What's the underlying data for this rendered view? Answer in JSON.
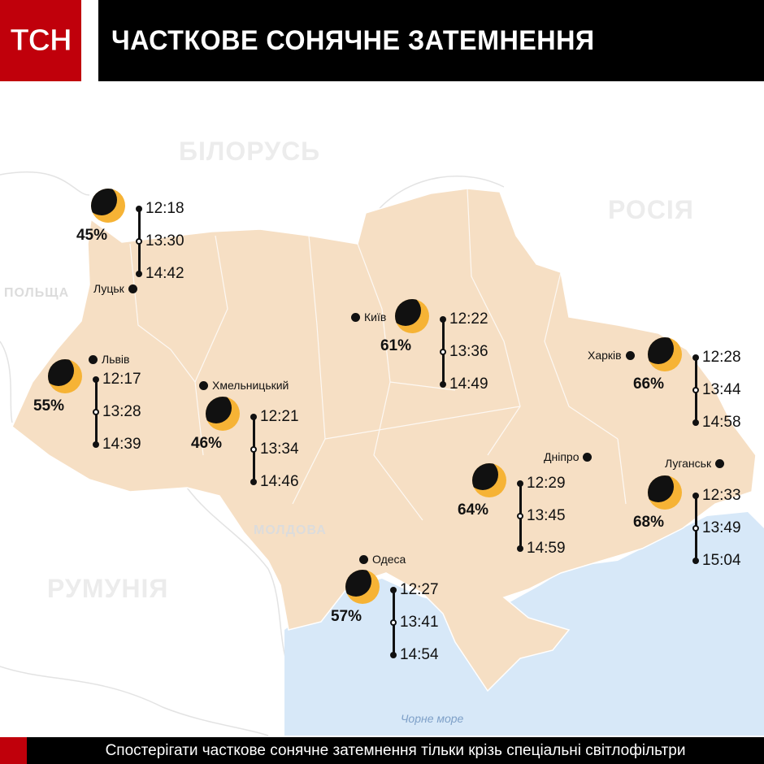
{
  "header": {
    "logo": "ТСН",
    "title": "ЧАСТКОВЕ СОНЯЧНЕ ЗАТЕМНЕННЯ"
  },
  "countries": {
    "belarus": "БІЛОРУСЬ",
    "russia": "РОСІЯ",
    "poland": "ПОЛЬЩА",
    "moldova": "МОЛДОВА",
    "romania": "РУМУНІЯ"
  },
  "sea": "Чорне море",
  "colors": {
    "land": "#f6dfc4",
    "sea": "#d7e8f8",
    "sun": "#f6b335",
    "brand": "#c0000b"
  },
  "regions": [
    {
      "city": "Луцьк",
      "percent": "45%",
      "times": [
        "12:18",
        "13:30",
        "14:42"
      ]
    },
    {
      "city": "Львів",
      "percent": "55%",
      "times": [
        "12:17",
        "13:28",
        "14:39"
      ]
    },
    {
      "city": "Хмельницький",
      "percent": "46%",
      "times": [
        "12:21",
        "13:34",
        "14:46"
      ]
    },
    {
      "city": "Київ",
      "percent": "61%",
      "times": [
        "12:22",
        "13:36",
        "14:49"
      ]
    },
    {
      "city": "Харків",
      "percent": "66%",
      "times": [
        "12:28",
        "13:44",
        "14:58"
      ]
    },
    {
      "city": "Дніпро",
      "percent": "64%",
      "times": [
        "12:29",
        "13:45",
        "14:59"
      ]
    },
    {
      "city": "Луганськ",
      "percent": "68%",
      "times": [
        "12:33",
        "13:49",
        "15:04"
      ]
    },
    {
      "city": "Одеса",
      "percent": "57%",
      "times": [
        "12:27",
        "13:41",
        "14:54"
      ]
    }
  ],
  "footer": "Спостерігати часткове сонячне затемнення тільки крізь спеціальні світлофільтри"
}
